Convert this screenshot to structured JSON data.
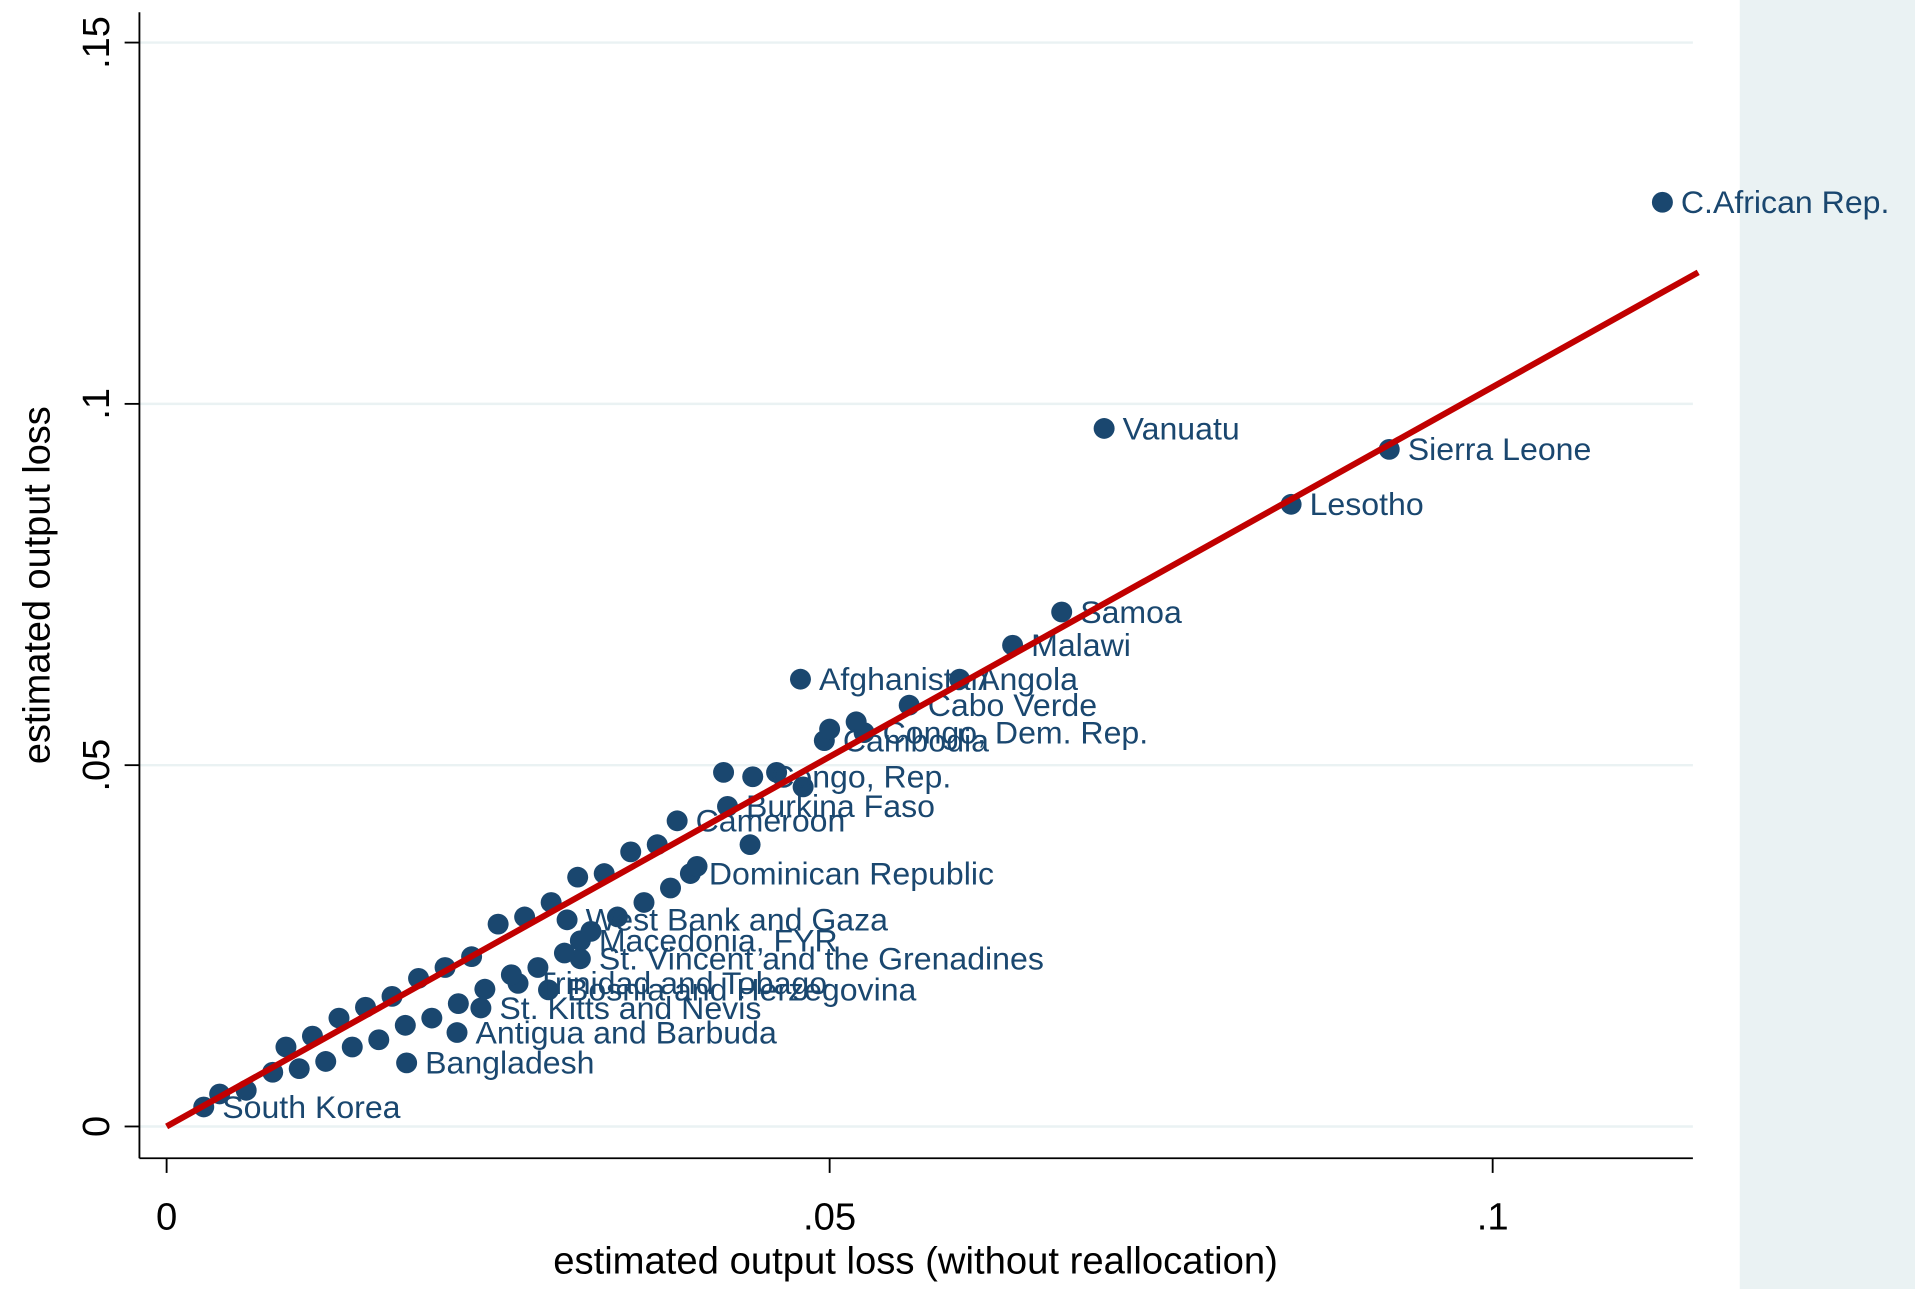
{
  "chart_data": {
    "type": "scatter",
    "x_label": "estimated output loss (without reallocation)",
    "y_label": "estimated output loss",
    "xlim": [
      -0.00205,
      0.1151
    ],
    "ylim": [
      -0.0044,
      0.1542
    ],
    "xticks": [
      0,
      {
        "value": 0.05,
        "label": ".05"
      },
      {
        "value": 0.1,
        "label": ".1"
      }
    ],
    "yticks": [
      0,
      {
        "value": 0.05,
        "label": ".05"
      },
      {
        "value": 0.1,
        "label": ".1"
      },
      {
        "value": 0.15,
        "label": ".15"
      }
    ],
    "grid": true,
    "color": "#1a476f",
    "labels": [
      "C.African Rep.",
      "Vanuatu",
      "Sierra Leone",
      "Lesotho",
      "Samoa",
      "Malawi",
      "Afghanistan",
      "Angola",
      "Cabo Verde",
      "Congo, Dem. Rep.",
      "Cambodia",
      "Burkina Faso",
      "Congo, Rep.",
      "Cameroon",
      "Dominican Republic",
      "West Bank and Gaza",
      "St. Vincent and the Grenadines",
      "Macedonia, FYR",
      "Bosnia and Herzegovina",
      "Trinidad and Tobago",
      "St. Kitts and Nevis",
      "Antigua and Barbuda",
      "Bangladesh",
      "South Korea",
      null,
      null,
      null,
      null,
      null,
      null,
      null,
      null,
      null,
      null,
      null,
      null,
      null,
      null,
      null,
      null,
      null,
      null,
      null,
      null,
      null,
      null,
      null,
      null,
      null,
      null,
      null,
      null,
      null,
      null,
      null,
      null,
      null,
      null,
      null,
      null,
      null,
      null,
      null,
      null
    ],
    "x": [
      0.1128,
      0.0707,
      0.0922,
      0.0848,
      0.0675,
      0.0638,
      0.0478,
      0.0598,
      0.056,
      0.0526,
      0.0496,
      0.0423,
      0.0442,
      0.0385,
      0.0395,
      0.0302,
      0.0312,
      0.0312,
      0.0288,
      0.0265,
      0.0237,
      0.0219,
      0.0181,
      0.0028,
      0.004,
      0.006,
      0.008,
      0.009,
      0.01,
      0.011,
      0.012,
      0.013,
      0.014,
      0.015,
      0.016,
      0.017,
      0.018,
      0.019,
      0.02,
      0.021,
      0.022,
      0.023,
      0.024,
      0.025,
      0.026,
      0.027,
      0.028,
      0.029,
      0.03,
      0.031,
      0.032,
      0.033,
      0.034,
      0.035,
      0.036,
      0.037,
      0.038,
      0.04,
      0.042,
      0.044,
      0.046,
      0.048,
      0.05,
      0.052
    ],
    "y": [
      0.1279,
      0.0966,
      0.0937,
      0.0861,
      0.0712,
      0.0666,
      0.0619,
      0.0619,
      0.0583,
      0.0545,
      0.0534,
      0.0443,
      0.0484,
      0.0423,
      0.035,
      0.0286,
      0.0232,
      0.0257,
      0.0189,
      0.0198,
      0.0164,
      0.013,
      0.0088,
      0.0027,
      0.0045,
      0.005,
      0.0075,
      0.011,
      0.008,
      0.0125,
      0.009,
      0.015,
      0.011,
      0.0165,
      0.012,
      0.018,
      0.014,
      0.0205,
      0.015,
      0.022,
      0.017,
      0.0235,
      0.019,
      0.028,
      0.021,
      0.029,
      0.022,
      0.031,
      0.024,
      0.0345,
      0.027,
      0.035,
      0.029,
      0.038,
      0.031,
      0.039,
      0.033,
      0.036,
      0.049,
      0.039,
      0.049,
      0.047,
      0.055,
      0.056
    ],
    "fit": {
      "x": [
        0,
        0.1155
      ],
      "y": [
        0,
        0.1182
      ],
      "color": "#c10000"
    }
  }
}
